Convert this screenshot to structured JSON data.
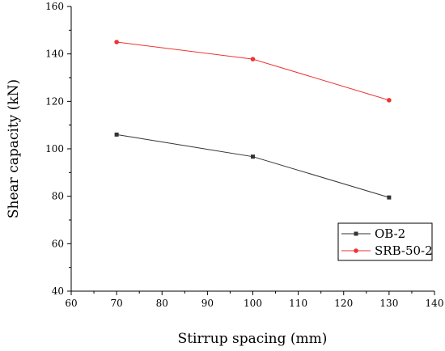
{
  "chart_data": {
    "type": "line",
    "title": "",
    "xlabel": "Stirrup spacing (mm)",
    "ylabel": "Shear capacity (kN)",
    "xlim": [
      60,
      140
    ],
    "ylim": [
      40,
      160
    ],
    "xticks": [
      60,
      70,
      80,
      90,
      100,
      110,
      120,
      130,
      140
    ],
    "yticks": [
      40,
      60,
      80,
      100,
      120,
      140,
      160
    ],
    "grid": false,
    "legend_position": "bottom-right",
    "x": [
      70,
      100,
      130
    ],
    "series": [
      {
        "name": "OB-2",
        "values": [
          106,
          96.7,
          79.5
        ],
        "color": "#333333",
        "marker": "square"
      },
      {
        "name": "SRB-50-2",
        "values": [
          145,
          137.8,
          120.5
        ],
        "color": "#ee3333",
        "marker": "circle"
      }
    ]
  }
}
